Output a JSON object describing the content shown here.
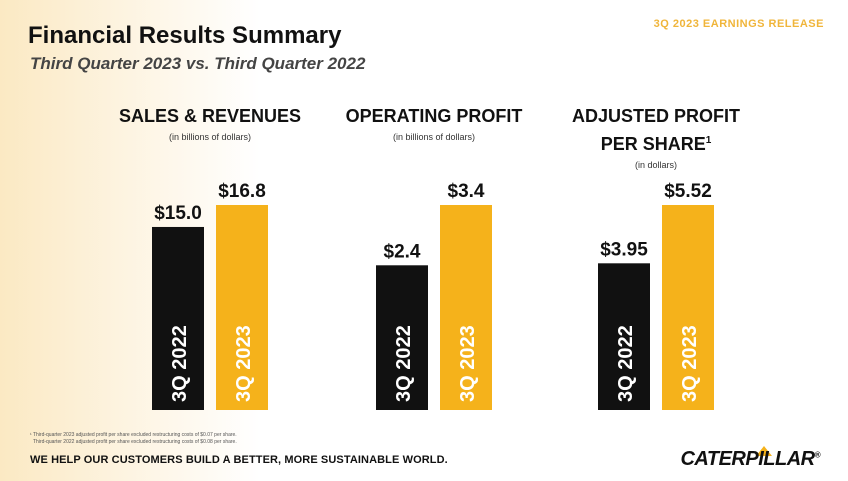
{
  "header": {
    "title": "Financial Results Summary",
    "subtitle": "Third Quarter 2023 vs. Third Quarter 2022",
    "release_label": "3Q 2023 EARNINGS RELEASE"
  },
  "colors": {
    "bar_2022": "#111111",
    "bar_2023": "#f5b21b",
    "release_label": "#f0b53a"
  },
  "chart_data": [
    {
      "type": "bar",
      "title": "SALES & REVENUES",
      "subtitle": "(in billions of dollars)",
      "categories": [
        "3Q 2022",
        "3Q 2023"
      ],
      "values": [
        15.0,
        16.8
      ],
      "value_labels": [
        "$15.0",
        "$16.8"
      ],
      "ylim": [
        0,
        16.8
      ]
    },
    {
      "type": "bar",
      "title": "OPERATING PROFIT",
      "subtitle": "(in billions of dollars)",
      "categories": [
        "3Q 2022",
        "3Q 2023"
      ],
      "values": [
        2.4,
        3.4
      ],
      "value_labels": [
        "$2.4",
        "$3.4"
      ],
      "ylim": [
        0,
        3.4
      ]
    },
    {
      "type": "bar",
      "title": "ADJUSTED PROFIT PER SHARE",
      "title_line1": "ADJUSTED PROFIT",
      "title_line2": "PER SHARE",
      "footnote_mark": "1",
      "subtitle": "(in dollars)",
      "categories": [
        "3Q 2022",
        "3Q 2023"
      ],
      "values": [
        3.95,
        5.52
      ],
      "value_labels": [
        "$3.95",
        "$5.52"
      ],
      "ylim": [
        0,
        5.52
      ]
    }
  ],
  "footnotes": {
    "line1": "¹ Third-quarter 2023 adjusted profit per share excluded restructuring costs of $0.07 per share.",
    "line2": "Third-quarter 2022 adjusted profit per share excluded restructuring costs of $0.08 per share."
  },
  "footer": {
    "tagline_prefix": "WE HELP OUR CUSTOMERS ",
    "tagline_strong": "BUILD A BETTER, MORE SUSTAINABLE WORLD.",
    "logo_text": "CATERPILLAR",
    "logo_mark": "®"
  }
}
